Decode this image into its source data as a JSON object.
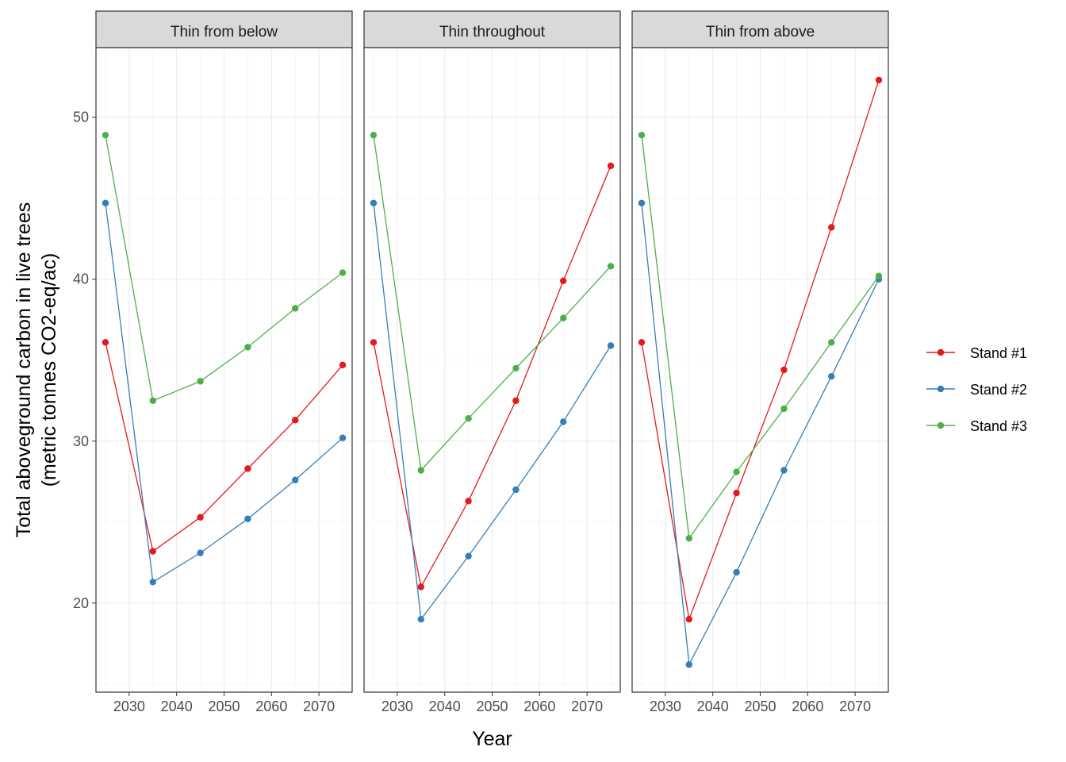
{
  "chart_data": {
    "type": "line",
    "facets": [
      "Thin from below",
      "Thin throughout",
      "Thin from above"
    ],
    "x": [
      2025,
      2035,
      2045,
      2055,
      2065,
      2075
    ],
    "xlabel": "Year",
    "ylabel_line1": "Total aboveground carbon in live trees",
    "ylabel_line2": "(metric tonnes CO2-eq/ac)",
    "xlim": [
      2023,
      2077
    ],
    "ylim": [
      14.5,
      54.3
    ],
    "x_ticks": [
      2030,
      2040,
      2050,
      2060,
      2070
    ],
    "y_ticks": [
      20,
      30,
      40,
      50
    ],
    "grid": true,
    "legend_position": "right",
    "series": [
      {
        "name": "Stand #1",
        "color": "#e41a1c",
        "values": [
          [
            36.1,
            23.2,
            25.3,
            28.3,
            31.3,
            34.7
          ],
          [
            36.1,
            21.0,
            26.3,
            32.5,
            39.9,
            47.0
          ],
          [
            36.1,
            19.0,
            26.8,
            34.4,
            43.2,
            52.3
          ]
        ]
      },
      {
        "name": "Stand #2",
        "color": "#377eb8",
        "values": [
          [
            44.7,
            21.3,
            23.1,
            25.2,
            27.6,
            30.2
          ],
          [
            44.7,
            19.0,
            22.9,
            27.0,
            31.2,
            35.9
          ],
          [
            44.7,
            16.2,
            21.9,
            28.2,
            34.0,
            40.0
          ]
        ]
      },
      {
        "name": "Stand #3",
        "color": "#4daf4a",
        "values": [
          [
            48.9,
            32.5,
            33.7,
            35.8,
            38.2,
            40.4
          ],
          [
            48.9,
            28.2,
            31.4,
            34.5,
            37.6,
            40.8
          ],
          [
            48.9,
            24.0,
            28.1,
            32.0,
            36.1,
            40.2
          ]
        ]
      }
    ]
  }
}
